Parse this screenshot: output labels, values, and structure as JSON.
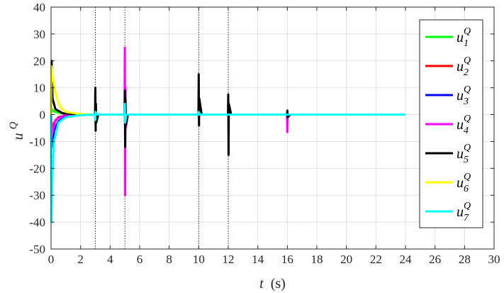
{
  "chart_data": {
    "type": "line",
    "title": "",
    "xlabel": {
      "symbol": "t",
      "unit": "(s)"
    },
    "ylabel": {
      "base": "u",
      "sup": "Q"
    },
    "xlim": [
      0,
      30
    ],
    "ylim": [
      -50,
      40
    ],
    "xticks": [
      0,
      2,
      4,
      6,
      8,
      10,
      12,
      14,
      16,
      18,
      20,
      22,
      24,
      26,
      28,
      30
    ],
    "yticks": [
      -50,
      -40,
      -30,
      -20,
      -10,
      0,
      10,
      20,
      30,
      40
    ],
    "grid": true,
    "legend_position": "right",
    "event_lines": [
      3,
      5,
      10,
      12
    ],
    "series": [
      {
        "name": "u_1^Q",
        "legend": {
          "base": "u",
          "sup": "Q",
          "sub": "1"
        },
        "color": "#00ff00",
        "points": [
          [
            0,
            0
          ],
          [
            0.05,
            2
          ],
          [
            0.2,
            1.2
          ],
          [
            0.6,
            0.6
          ],
          [
            1.2,
            0.2
          ],
          [
            2.5,
            0
          ],
          [
            24,
            0
          ]
        ]
      },
      {
        "name": "u_2^Q",
        "legend": {
          "base": "u",
          "sup": "Q",
          "sub": "2"
        },
        "color": "#ff0000",
        "points": [
          [
            0,
            0
          ],
          [
            0.05,
            -6
          ],
          [
            0.2,
            -3
          ],
          [
            0.5,
            -1
          ],
          [
            1.0,
            -0.2
          ],
          [
            2.5,
            0
          ],
          [
            24,
            0
          ]
        ]
      },
      {
        "name": "u_3^Q",
        "legend": {
          "base": "u",
          "sup": "Q",
          "sub": "3"
        },
        "color": "#0000ff",
        "points": [
          [
            0,
            0
          ],
          [
            0.05,
            -12
          ],
          [
            0.2,
            -6
          ],
          [
            0.5,
            -2.5
          ],
          [
            1.0,
            -0.8
          ],
          [
            2.0,
            -0.1
          ],
          [
            3,
            0
          ],
          [
            24,
            0
          ]
        ]
      },
      {
        "name": "u_4^Q",
        "legend": {
          "base": "u",
          "sup": "Q",
          "sub": "4"
        },
        "color": "#ff00ff",
        "points": [
          [
            0,
            0
          ],
          [
            0.05,
            -8
          ],
          [
            0.3,
            -2
          ],
          [
            1.0,
            0
          ],
          [
            4.98,
            0
          ],
          [
            5,
            25
          ],
          [
            5.02,
            -30
          ],
          [
            5.04,
            10
          ],
          [
            5.06,
            -5
          ],
          [
            5.2,
            0
          ],
          [
            15.98,
            0
          ],
          [
            16,
            -6.5
          ],
          [
            16.02,
            0
          ],
          [
            24,
            0
          ]
        ]
      },
      {
        "name": "u_5^Q",
        "legend": {
          "base": "u",
          "sup": "Q",
          "sub": "5"
        },
        "color": "#000000",
        "points": [
          [
            0,
            0
          ],
          [
            0.04,
            20
          ],
          [
            0.1,
            6
          ],
          [
            0.3,
            2
          ],
          [
            0.8,
            0.5
          ],
          [
            2.0,
            0
          ],
          [
            2.98,
            0
          ],
          [
            3,
            10
          ],
          [
            3.02,
            -6
          ],
          [
            3.04,
            4
          ],
          [
            3.06,
            -3
          ],
          [
            3.2,
            0
          ],
          [
            4.98,
            0
          ],
          [
            5,
            9
          ],
          [
            5.02,
            -12
          ],
          [
            5.04,
            6
          ],
          [
            5.06,
            -4
          ],
          [
            5.2,
            0
          ],
          [
            9.98,
            0
          ],
          [
            10,
            15
          ],
          [
            10.02,
            -4
          ],
          [
            10.04,
            6
          ],
          [
            10.2,
            0
          ],
          [
            11.98,
            0
          ],
          [
            12,
            7.5
          ],
          [
            12.02,
            -15
          ],
          [
            12.04,
            4
          ],
          [
            12.2,
            0
          ],
          [
            15.98,
            0
          ],
          [
            16,
            1.5
          ],
          [
            16.02,
            -1
          ],
          [
            16.2,
            0
          ],
          [
            24,
            0
          ]
        ]
      },
      {
        "name": "u_6^Q",
        "legend": {
          "base": "u",
          "sup": "Q",
          "sub": "6"
        },
        "color": "#ffff00",
        "points": [
          [
            0,
            0
          ],
          [
            0.03,
            18
          ],
          [
            0.1,
            15
          ],
          [
            0.3,
            8
          ],
          [
            0.6,
            3
          ],
          [
            1.0,
            1
          ],
          [
            2.0,
            0.2
          ],
          [
            3,
            0
          ],
          [
            24,
            0
          ]
        ]
      },
      {
        "name": "u_7^Q",
        "legend": {
          "base": "u",
          "sup": "Q",
          "sub": "7"
        },
        "color": "#00ffff",
        "points": [
          [
            0,
            0
          ],
          [
            0.03,
            -40
          ],
          [
            0.08,
            -25
          ],
          [
            0.2,
            -10
          ],
          [
            0.5,
            -3
          ],
          [
            1.0,
            -1
          ],
          [
            2.0,
            -0.2
          ],
          [
            2.98,
            0
          ],
          [
            3,
            -2
          ],
          [
            3.02,
            1
          ],
          [
            3.1,
            0
          ],
          [
            4.98,
            0
          ],
          [
            5,
            4
          ],
          [
            5.02,
            -3
          ],
          [
            5.1,
            0
          ],
          [
            9.98,
            0
          ],
          [
            10,
            1
          ],
          [
            10.1,
            0
          ],
          [
            24,
            0
          ]
        ]
      }
    ]
  }
}
